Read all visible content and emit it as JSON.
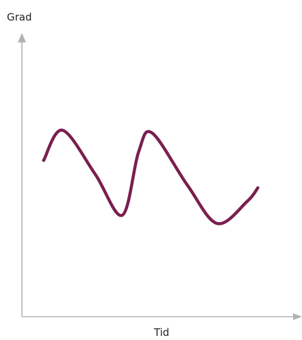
{
  "chart_data": {
    "type": "line",
    "ylabel": "Grad",
    "xlabel": "Tid",
    "grid": false,
    "legend": "none",
    "xlim": [
      0,
      100
    ],
    "ylim": [
      0,
      100
    ],
    "series": [
      {
        "color": "#7a1f4f",
        "points": [
          [
            8,
            57
          ],
          [
            15,
            68
          ],
          [
            27,
            52
          ],
          [
            37,
            37
          ],
          [
            43,
            60
          ],
          [
            48,
            67
          ],
          [
            61,
            48
          ],
          [
            72,
            34
          ],
          [
            83,
            42
          ],
          [
            87,
            47
          ]
        ]
      }
    ]
  }
}
